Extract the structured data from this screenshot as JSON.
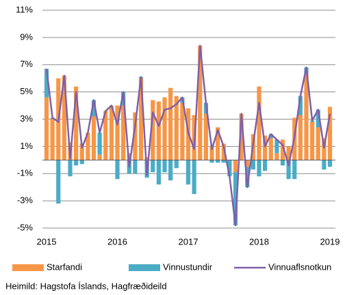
{
  "chart_data": {
    "type": "bar",
    "categories": [
      "2015",
      null,
      null,
      null,
      null,
      null,
      null,
      null,
      null,
      null,
      null,
      null,
      "2016",
      null,
      null,
      null,
      null,
      null,
      null,
      null,
      null,
      null,
      null,
      null,
      "2017",
      null,
      null,
      null,
      null,
      null,
      null,
      null,
      null,
      null,
      null,
      null,
      "2018",
      null,
      null,
      null,
      null,
      null,
      null,
      null,
      null,
      null,
      null,
      null,
      "2019"
    ],
    "series": [
      {
        "name": "Starfandi",
        "type": "bar",
        "color": "#f79646",
        "values": [
          4.6,
          3.0,
          6.0,
          6.2,
          1.3,
          5.4,
          1.2,
          2.0,
          3.2,
          0.4,
          3.6,
          4.0,
          4.0,
          4.0,
          0.5,
          3.5,
          6.0,
          0.2,
          4.4,
          4.3,
          4.6,
          5.3,
          4.7,
          4.2,
          3.8,
          3.3,
          8.4,
          3.4,
          1.0,
          2.4,
          1.2,
          0,
          -0.9,
          3.4,
          -0.5,
          1.9,
          5.4,
          1.8,
          1.6,
          0.5,
          1.5,
          1.0,
          3.1,
          3.3,
          6.3,
          2.8,
          2.4,
          1.6,
          3.9
        ]
      },
      {
        "name": "Vinnustundir",
        "type": "bar",
        "color": "#4bacc6",
        "values": [
          2.1,
          0.1,
          -3.2,
          0,
          -1.2,
          -0.4,
          -0.3,
          0,
          1.2,
          1.6,
          0,
          0,
          -1.4,
          1.0,
          -1.0,
          -1.0,
          0.1,
          -1.3,
          -0.9,
          -1.8,
          -0.9,
          -1.5,
          -0.6,
          0.4,
          -1.8,
          -2.5,
          0,
          0.8,
          -0.2,
          -0.2,
          -0.2,
          -1.2,
          -3.9,
          0,
          -1.5,
          -0.7,
          -1.2,
          -0.8,
          0.3,
          1.0,
          -0.4,
          -1.4,
          -1.4,
          1.4,
          0.5,
          0.1,
          1.3,
          -0.7,
          -0.5
        ]
      },
      {
        "name": "Vinnuaflsnotkun",
        "type": "line",
        "color": "#7f5fa8",
        "values": [
          6.7,
          3.1,
          2.8,
          6.2,
          0.1,
          5.0,
          0.9,
          2.0,
          4.4,
          2.0,
          3.6,
          4.0,
          2.6,
          5.0,
          -0.5,
          2.5,
          6.1,
          -1.1,
          3.5,
          2.5,
          3.7,
          3.8,
          4.1,
          4.6,
          2.0,
          0.8,
          8.4,
          4.2,
          0.8,
          2.2,
          1.0,
          -1.2,
          -4.8,
          3.4,
          -2.0,
          1.2,
          4.2,
          1.0,
          1.9,
          1.5,
          1.1,
          -0.4,
          1.7,
          4.7,
          6.8,
          2.9,
          3.7,
          0.9,
          3.4
        ]
      }
    ],
    "ylim": [
      -5,
      11
    ],
    "yticks": [
      {
        "value": -5,
        "label": "-5%"
      },
      {
        "value": -3,
        "label": "-3%"
      },
      {
        "value": -1,
        "label": "-1%"
      },
      {
        "value": 1,
        "label": "1%"
      },
      {
        "value": 3,
        "label": "3%"
      },
      {
        "value": 5,
        "label": "5%"
      },
      {
        "value": 7,
        "label": "7%"
      },
      {
        "value": 9,
        "label": "9%"
      },
      {
        "value": 11,
        "label": "11%"
      }
    ],
    "grid": true,
    "stacked": true,
    "legend": "bottom",
    "source": "Heimild: Hagstofa Íslands, Hagfræðideild"
  }
}
